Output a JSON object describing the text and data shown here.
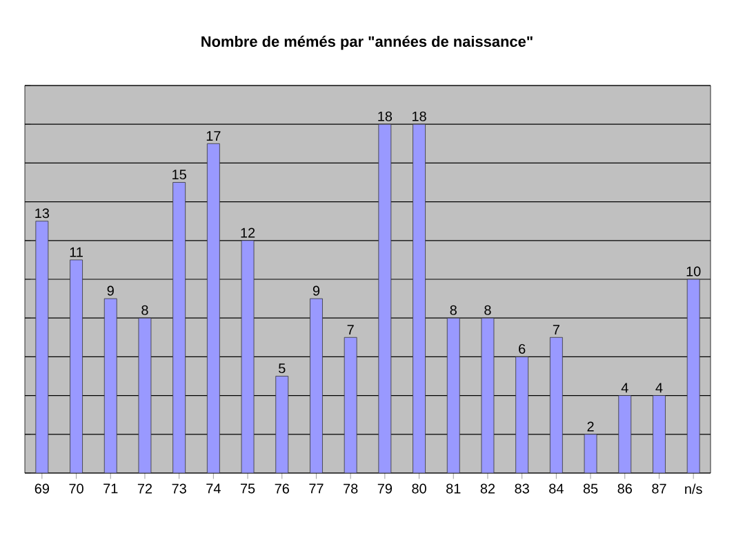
{
  "chart_data": {
    "type": "bar",
    "title": "Nombre de mémés par \"années de naissance\"",
    "categories": [
      "69",
      "70",
      "71",
      "72",
      "73",
      "74",
      "75",
      "76",
      "77",
      "78",
      "79",
      "80",
      "81",
      "82",
      "83",
      "84",
      "85",
      "86",
      "87",
      "n/s"
    ],
    "values": [
      13,
      11,
      9,
      8,
      15,
      17,
      12,
      5,
      9,
      7,
      18,
      18,
      8,
      8,
      6,
      7,
      2,
      4,
      4,
      10
    ],
    "color": "#9999ff",
    "ylim": [
      0,
      20
    ],
    "yticks": [
      {
        "value": 0,
        "label": null
      },
      {
        "value": 2,
        "label": null
      },
      {
        "value": 4,
        "label": null
      },
      {
        "value": 6,
        "label": null
      },
      {
        "value": 8,
        "label": null
      },
      {
        "value": 10,
        "label": null
      },
      {
        "value": 12,
        "label": null
      },
      {
        "value": 14,
        "label": null
      },
      {
        "value": 16,
        "label": null
      },
      {
        "value": 18,
        "label": null
      },
      {
        "value": 20,
        "label": null
      }
    ],
    "grid": "y",
    "data_labels": true,
    "tick_labels": "x"
  }
}
